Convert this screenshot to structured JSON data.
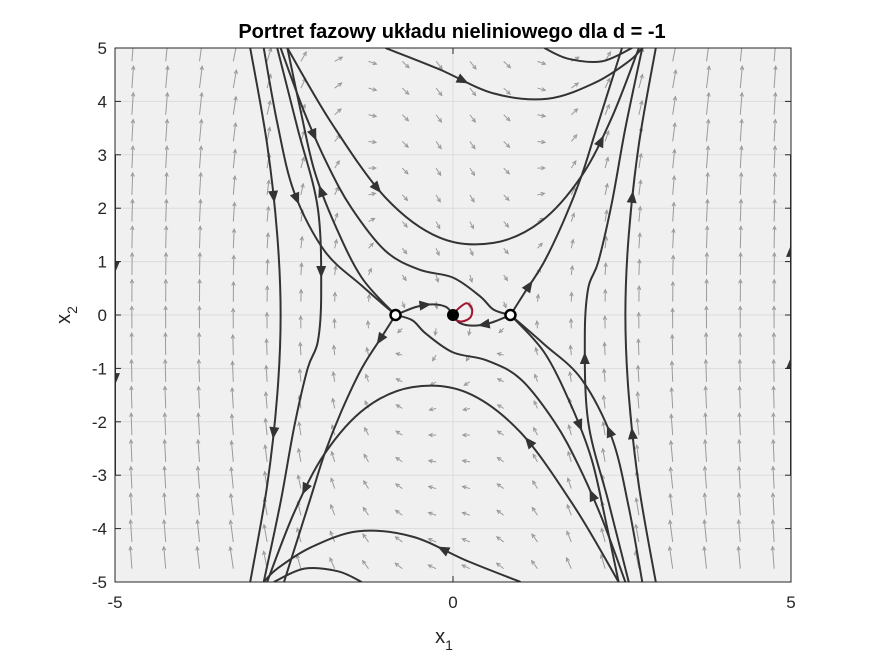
{
  "chart_data": {
    "type": "scatter",
    "title": "Portret fazowy układu nieliniowego dla d = -1",
    "xlabel": {
      "base": "x",
      "sub": "1"
    },
    "ylabel": {
      "base": "x",
      "sub": "2"
    },
    "xlim": [
      -5,
      5
    ],
    "ylim": [
      -5,
      5
    ],
    "xticks": [
      -5,
      0,
      5
    ],
    "xtick_labels": [
      "-5",
      "0",
      "5"
    ],
    "yticks": [
      -5,
      -4,
      -3,
      -2,
      -1,
      0,
      1,
      2,
      3,
      4,
      5
    ],
    "ytick_labels": [
      "-5",
      "-4",
      "-3",
      "-2",
      "-1",
      "0",
      "1",
      "2",
      "3",
      "4",
      "5"
    ],
    "grid": true,
    "colors": {
      "background": "#f0f0f0",
      "grid": "#dcdcdc",
      "trajectory": "#333333",
      "quiver": "#9a9a9a",
      "highlight": "#a2142f",
      "equilibrium": "#000000"
    },
    "equilibria": [
      {
        "x": -0.85,
        "y": 0,
        "type": "saddle"
      },
      {
        "x": 0,
        "y": 0,
        "type": "stable focus"
      },
      {
        "x": 0.85,
        "y": 0,
        "type": "saddle"
      }
    ],
    "highlight_trajectory": [
      [
        0.0,
        0.0
      ],
      [
        0.08,
        0.12
      ],
      [
        0.2,
        0.22
      ],
      [
        0.28,
        0.12
      ],
      [
        0.26,
        -0.04
      ],
      [
        0.14,
        -0.12
      ],
      [
        0.03,
        -0.08
      ],
      [
        0.0,
        0.0
      ]
    ],
    "trajectories": [
      {
        "points": [
          [
            -5,
            3
          ],
          [
            -5,
            -3
          ]
        ],
        "arrows": [
          0.35,
          0.7
        ]
      },
      {
        "points": [
          [
            5,
            -3
          ],
          [
            5,
            3
          ]
        ],
        "arrows": [
          0.35,
          0.7
        ]
      },
      {
        "points": [
          [
            -0.85,
            0
          ],
          [
            -1.35,
            0.7
          ],
          [
            -1.75,
            1.7
          ],
          [
            -2.05,
            2.7
          ],
          [
            -2.25,
            3.8
          ],
          [
            -2.45,
            5
          ]
        ],
        "arrows": [
          0.5
        ]
      },
      {
        "points": [
          [
            -0.85,
            0
          ],
          [
            -1.05,
            -0.4
          ],
          [
            -1.35,
            -1.0
          ],
          [
            -1.65,
            -1.8
          ],
          [
            -1.9,
            -2.6
          ],
          [
            -2.1,
            -3.4
          ],
          [
            -2.3,
            -4.2
          ],
          [
            -2.5,
            -5
          ]
        ],
        "arrows": [
          0.1
        ]
      },
      {
        "points": [
          [
            0.85,
            0
          ],
          [
            1.05,
            0.4
          ],
          [
            1.35,
            1.0
          ],
          [
            1.65,
            1.8
          ],
          [
            1.9,
            2.6
          ],
          [
            2.1,
            3.4
          ],
          [
            2.3,
            4.2
          ],
          [
            2.5,
            5
          ]
        ],
        "arrows": [
          0.12
        ]
      },
      {
        "points": [
          [
            0.85,
            0
          ],
          [
            1.35,
            -0.7
          ],
          [
            1.75,
            -1.7
          ],
          [
            2.05,
            -2.7
          ],
          [
            2.25,
            -3.8
          ],
          [
            2.45,
            -5
          ]
        ],
        "arrows": [
          0.45
        ]
      },
      {
        "points": [
          [
            -2.8,
            5
          ],
          [
            -2.6,
            3.6
          ],
          [
            -2.35,
            2.3
          ],
          [
            -1.9,
            1.2
          ],
          [
            -1.35,
            0.55
          ],
          [
            -0.85,
            0
          ]
        ],
        "arrows": [
          0.5
        ]
      },
      {
        "points": [
          [
            2.8,
            -5
          ],
          [
            2.6,
            -3.6
          ],
          [
            2.35,
            -2.3
          ],
          [
            1.9,
            -1.2
          ],
          [
            1.35,
            -0.55
          ],
          [
            0.85,
            0
          ]
        ],
        "arrows": [
          0.5
        ]
      },
      {
        "points": [
          [
            -0.85,
            0
          ],
          [
            -0.55,
            0.15
          ],
          [
            -0.3,
            0.2
          ],
          [
            -0.1,
            0.15
          ],
          [
            0.0,
            0.0
          ]
        ],
        "arrows": [
          0.5
        ]
      },
      {
        "points": [
          [
            0.85,
            0
          ],
          [
            0.55,
            -0.15
          ],
          [
            0.3,
            -0.2
          ],
          [
            0.1,
            -0.15
          ],
          [
            0.0,
            0.0
          ]
        ],
        "arrows": [
          0.45
        ]
      },
      {
        "points": [
          [
            -2.55,
            5
          ],
          [
            -2.2,
            3.8
          ],
          [
            -1.85,
            2.8
          ],
          [
            -1.5,
            2.0
          ],
          [
            -1.0,
            1.2
          ],
          [
            -0.5,
            0.85
          ],
          [
            0.0,
            0.7
          ],
          [
            0.4,
            0.35
          ],
          [
            0.6,
            0.1
          ],
          [
            0.85,
            0
          ]
        ],
        "arrows": [
          0.25
        ]
      },
      {
        "points": [
          [
            2.55,
            -5
          ],
          [
            2.2,
            -3.8
          ],
          [
            1.85,
            -2.8
          ],
          [
            1.5,
            -2.0
          ],
          [
            1.0,
            -1.2
          ],
          [
            0.5,
            -0.85
          ],
          [
            0.0,
            -0.7
          ],
          [
            -0.4,
            -0.35
          ],
          [
            -0.6,
            -0.1
          ],
          [
            -0.85,
            0
          ]
        ],
        "arrows": [
          0.25
        ]
      },
      {
        "points": [
          [
            -2.45,
            5
          ],
          [
            -1.8,
            3.6
          ],
          [
            -1.0,
            2.2
          ],
          [
            -0.2,
            1.45
          ],
          [
            0.6,
            1.35
          ],
          [
            1.3,
            1.75
          ],
          [
            1.9,
            2.6
          ],
          [
            2.35,
            3.7
          ],
          [
            2.75,
            5
          ]
        ],
        "arrows": [
          0.3,
          0.82
        ]
      },
      {
        "points": [
          [
            2.45,
            -5
          ],
          [
            1.8,
            -3.6
          ],
          [
            1.0,
            -2.2
          ],
          [
            0.2,
            -1.45
          ],
          [
            -0.6,
            -1.35
          ],
          [
            -1.3,
            -1.75
          ],
          [
            -1.9,
            -2.6
          ],
          [
            -2.35,
            -3.7
          ],
          [
            -2.75,
            -5
          ]
        ],
        "arrows": [
          0.3,
          0.82
        ]
      },
      {
        "points": [
          [
            -1.0,
            5
          ],
          [
            -0.2,
            4.6
          ],
          [
            0.6,
            4.15
          ],
          [
            1.4,
            4.05
          ],
          [
            2.1,
            4.35
          ],
          [
            2.6,
            4.75
          ],
          [
            2.8,
            5
          ]
        ],
        "arrows": [
          0.3
        ]
      },
      {
        "points": [
          [
            1.0,
            -5
          ],
          [
            0.2,
            -4.6
          ],
          [
            -0.6,
            -4.15
          ],
          [
            -1.4,
            -4.05
          ],
          [
            -2.1,
            -4.35
          ],
          [
            -2.6,
            -4.75
          ],
          [
            -2.8,
            -5
          ]
        ],
        "arrows": [
          0.3
        ]
      },
      {
        "points": [
          [
            1.35,
            5
          ],
          [
            1.7,
            4.8
          ],
          [
            2.2,
            4.75
          ],
          [
            2.65,
            5
          ]
        ],
        "arrows": []
      },
      {
        "points": [
          [
            -1.35,
            -5
          ],
          [
            -1.7,
            -4.8
          ],
          [
            -2.2,
            -4.75
          ],
          [
            -2.65,
            -5
          ]
        ],
        "arrows": []
      },
      {
        "points": [
          [
            -3.0,
            5
          ],
          [
            -2.75,
            3.2
          ],
          [
            -2.6,
            1.5
          ],
          [
            -2.55,
            0
          ],
          [
            -2.6,
            -1.5
          ],
          [
            -2.75,
            -3.2
          ],
          [
            -3.0,
            -5
          ]
        ],
        "arrows": [
          0.28,
          0.72
        ]
      },
      {
        "points": [
          [
            3.0,
            -5
          ],
          [
            2.75,
            -3.2
          ],
          [
            2.6,
            -1.5
          ],
          [
            2.55,
            0
          ],
          [
            2.6,
            1.5
          ],
          [
            2.75,
            3.2
          ],
          [
            3.0,
            5
          ]
        ],
        "arrows": [
          0.28,
          0.72
        ]
      },
      {
        "points": [
          [
            -2.6,
            5
          ],
          [
            -2.3,
            3.5
          ],
          [
            -2.0,
            2.0
          ],
          [
            -1.95,
            0.4
          ],
          [
            -2.0,
            -0.5
          ],
          [
            -2.15,
            -1.0
          ],
          [
            -2.35,
            -2.1
          ],
          [
            -2.55,
            -3.5
          ],
          [
            -2.8,
            -5
          ]
        ],
        "arrows": [
          0.42
        ]
      },
      {
        "points": [
          [
            2.6,
            -5
          ],
          [
            2.3,
            -3.5
          ],
          [
            2.0,
            -2.0
          ],
          [
            1.95,
            -0.4
          ],
          [
            2.0,
            0.5
          ],
          [
            2.15,
            1.0
          ],
          [
            2.35,
            2.1
          ],
          [
            2.55,
            3.5
          ],
          [
            2.8,
            5
          ]
        ],
        "arrows": [
          0.42
        ]
      }
    ]
  }
}
